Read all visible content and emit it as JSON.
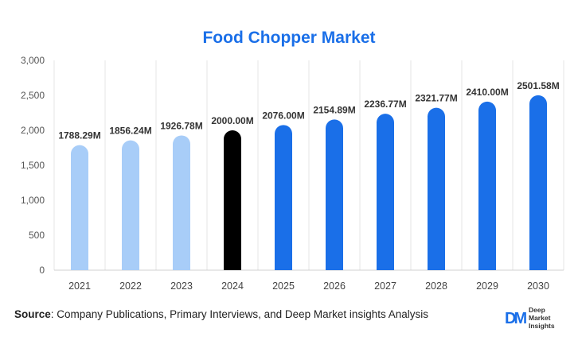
{
  "chart_data": {
    "type": "bar",
    "title": "Food Chopper Market",
    "categories": [
      "2021",
      "2022",
      "2023",
      "2024",
      "2025",
      "2026",
      "2027",
      "2028",
      "2029",
      "2030"
    ],
    "values": [
      1788.29,
      1856.24,
      1926.78,
      2000.0,
      2076.0,
      2154.89,
      2236.77,
      2321.77,
      2410.0,
      2501.58
    ],
    "data_labels": [
      "1788.29M",
      "1856.24M",
      "1926.78M",
      "2000.00M",
      "2076.00M",
      "2154.89M",
      "2236.77M",
      "2321.77M",
      "2410.00M",
      "2501.58M"
    ],
    "bar_colors": [
      "#a8cdf8",
      "#a8cdf8",
      "#a8cdf8",
      "#000000",
      "#1a6fe8",
      "#1a6fe8",
      "#1a6fe8",
      "#1a6fe8",
      "#1a6fe8",
      "#1a6fe8"
    ],
    "ylim": [
      0,
      3000
    ],
    "yticks": [
      0,
      500,
      1000,
      1500,
      2000,
      2500,
      3000
    ],
    "ytick_labels": [
      "0",
      "500",
      "1,000",
      "1,500",
      "2,000",
      "2,500",
      "3,000"
    ],
    "xlabel": "",
    "ylabel": "",
    "grid": "vertical"
  },
  "source": {
    "label": "Source",
    "text": ": Company Publications, Primary Interviews, and Deep Market insights Analysis"
  },
  "logo": {
    "mark": "DM",
    "line1": "Deep",
    "line2": "Market",
    "line3": "Insights"
  },
  "colors": {
    "title": "#1a6fe8",
    "history": "#a8cdf8",
    "base_year": "#000000",
    "forecast": "#1a6fe8"
  }
}
